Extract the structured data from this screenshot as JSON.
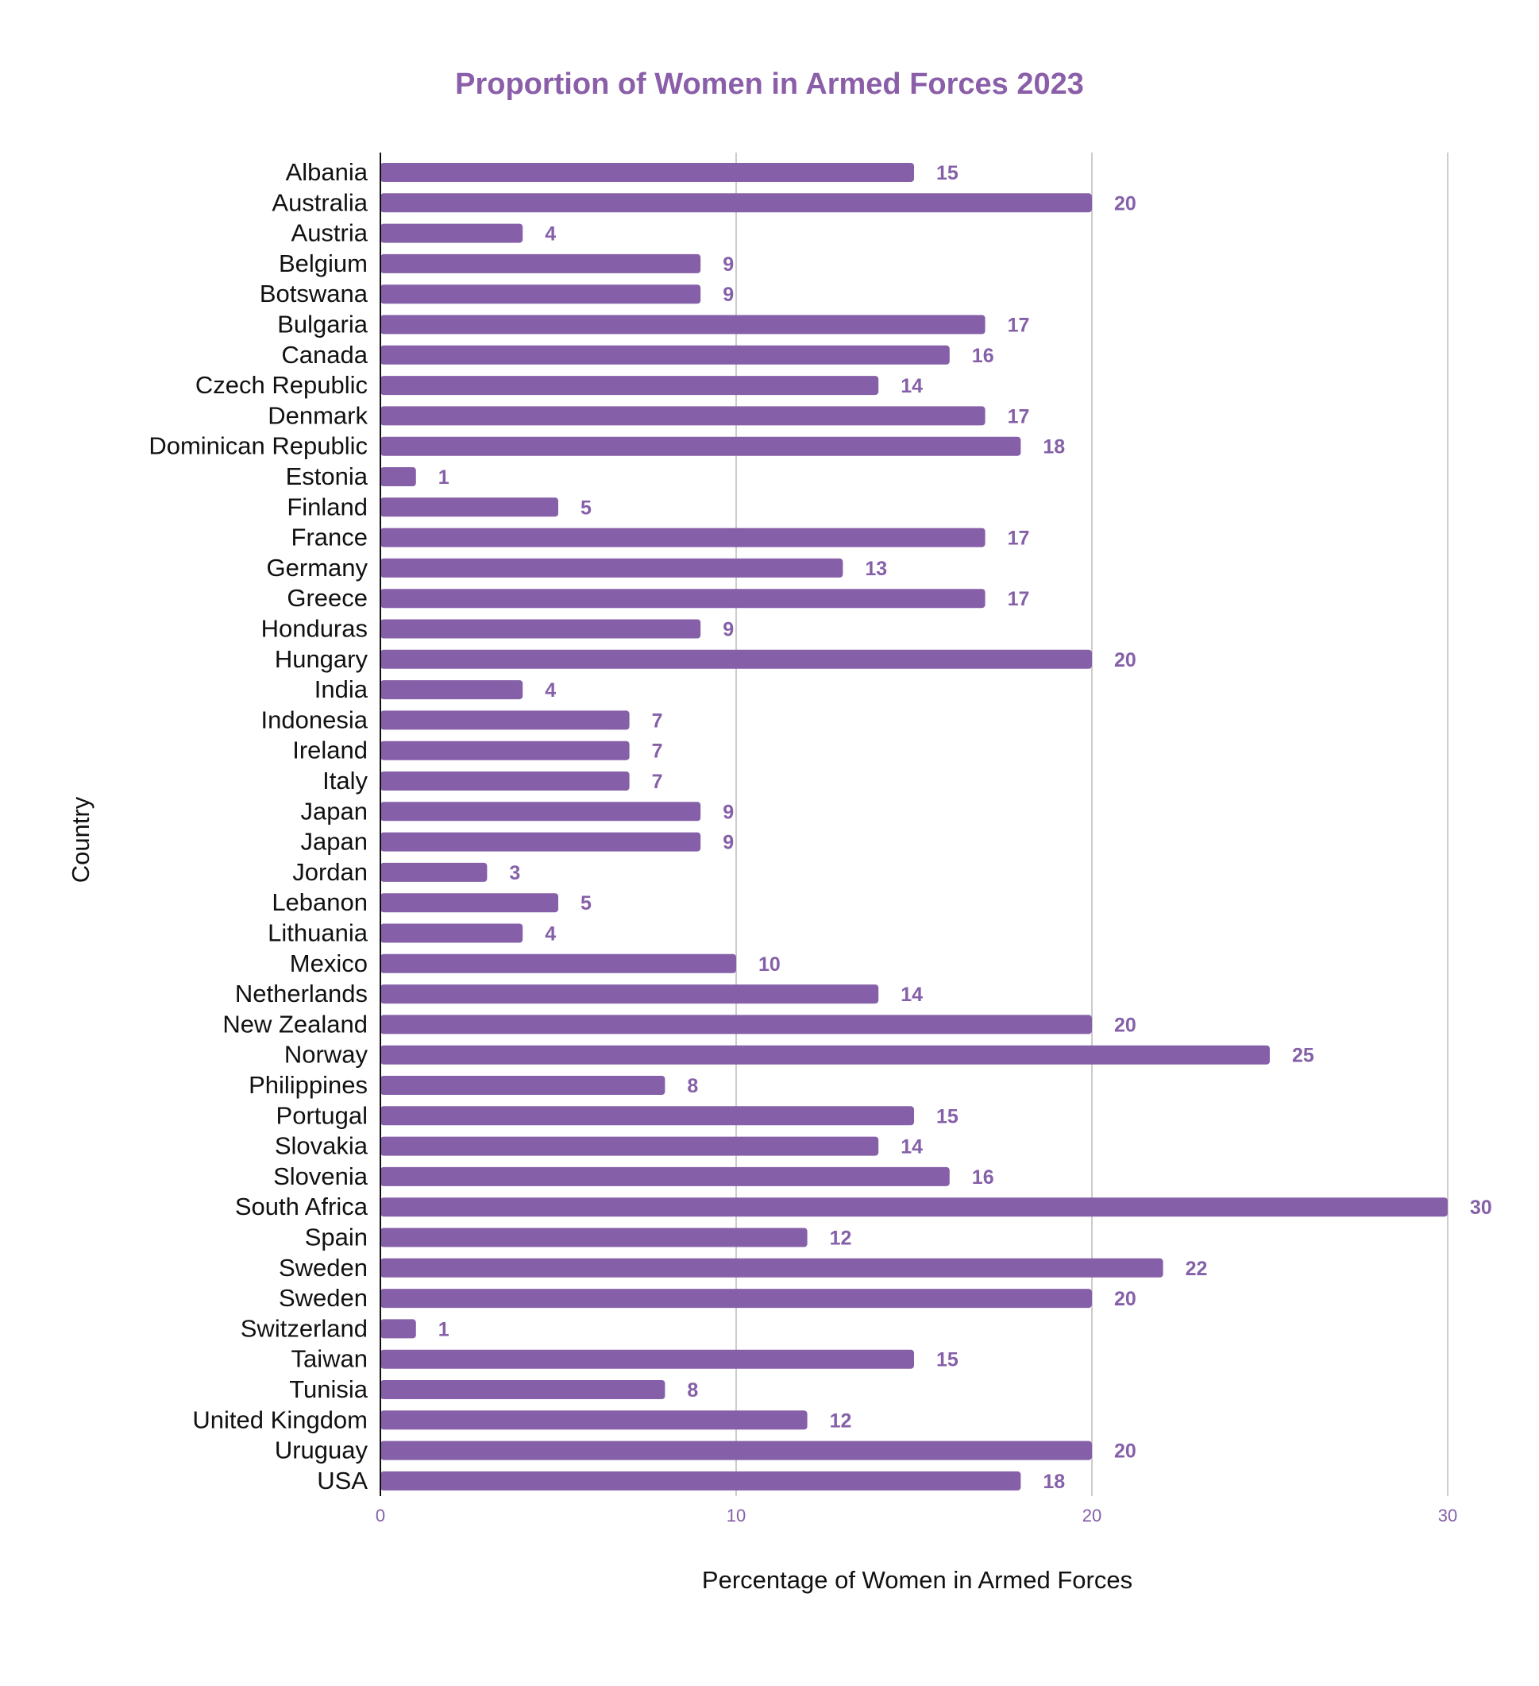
{
  "chart_data": {
    "type": "bar",
    "orientation": "horizontal",
    "title": "Proportion of Women in Armed Forces 2023",
    "xlabel": "Percentage of Women in Armed Forces",
    "ylabel": "Country",
    "xlim": [
      0,
      30
    ],
    "xticks": [
      0,
      10,
      20,
      30
    ],
    "grid": true,
    "legend": "none",
    "categories": [
      "Albania",
      "Australia",
      "Austria",
      "Belgium",
      "Botswana",
      "Bulgaria",
      "Canada",
      "Czech Republic",
      "Denmark",
      "Dominican Republic",
      "Estonia",
      "Finland",
      "France",
      "Germany",
      "Greece",
      "Honduras",
      "Hungary",
      "India",
      "Indonesia",
      "Ireland",
      "Italy",
      "Japan",
      "Japan",
      "Jordan",
      "Lebanon",
      "Lithuania",
      "Mexico",
      "Netherlands",
      "New Zealand",
      "Norway",
      "Philippines",
      "Portugal",
      "Slovakia",
      "Slovenia",
      "South Africa",
      "Spain",
      "Sweden",
      "Sweden",
      "Switzerland",
      "Taiwan",
      "Tunisia",
      "United Kingdom",
      "Uruguay",
      "USA"
    ],
    "values": [
      15,
      20,
      4,
      9,
      9,
      17,
      16,
      14,
      17,
      18,
      1,
      5,
      17,
      13,
      17,
      9,
      20,
      4,
      7,
      7,
      7,
      9,
      9,
      3,
      5,
      4,
      10,
      14,
      20,
      25,
      8,
      15,
      14,
      16,
      30,
      12,
      22,
      20,
      1,
      15,
      8,
      12,
      20,
      18
    ]
  },
  "colors": {
    "bar": "#8560a8",
    "title": "#8a5ea8",
    "value_label": "#8560a8",
    "tick_label": "#8560a8",
    "grid": "#cccccc",
    "axis": "#111111"
  }
}
